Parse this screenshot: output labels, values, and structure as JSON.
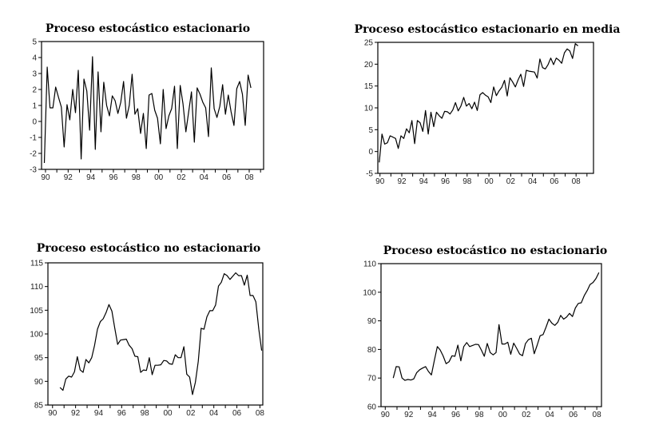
{
  "chart_data": [
    {
      "type": "line",
      "title": "Proceso estocástico estacionario",
      "xlim": [
        1989.65,
        2009.27
      ],
      "ylim": [
        -3,
        5
      ],
      "yticks": [
        5,
        4,
        3,
        2,
        1,
        0,
        -1,
        -2,
        -3
      ],
      "ytick_labels": [
        "5",
        "4",
        "3",
        "2",
        "1",
        "0",
        "-1",
        "-2",
        "-3"
      ],
      "xticks": [
        1990,
        1992,
        1994,
        1996,
        1998,
        2000,
        2002,
        2004,
        2006,
        2008
      ],
      "xtick_labels": [
        "90",
        "92",
        "94",
        "96",
        "98",
        "00",
        "02",
        "04",
        "06",
        "08"
      ],
      "grid": false,
      "frequency": "quarterly",
      "x_start": 1989.9,
      "values": [
        -2.6,
        3.4,
        0.85,
        0.85,
        2.15,
        1.5,
        0.9,
        -1.6,
        1.05,
        0.1,
        2.0,
        0.55,
        3.2,
        -2.35,
        2.65,
        1.9,
        -0.55,
        4.05,
        -1.75,
        3.1,
        -0.65,
        2.45,
        1.0,
        0.35,
        1.6,
        1.3,
        0.5,
        1.2,
        2.5,
        0.2,
        1.0,
        2.95,
        0.45,
        0.8,
        -0.75,
        0.5,
        -1.7,
        1.65,
        1.75,
        0.7,
        0.2,
        -1.4,
        2.0,
        -0.45,
        0.35,
        0.8,
        2.2,
        -1.7,
        2.25,
        1.1,
        -0.65,
        0.6,
        1.85,
        -1.3,
        2.1,
        1.7,
        1.2,
        0.85,
        -0.95,
        3.35,
        0.8,
        0.25,
        0.95,
        2.3,
        0.45,
        1.65,
        0.6,
        -0.25,
        2.05,
        2.5,
        1.7,
        -0.25,
        2.9,
        2.1
      ]
    },
    {
      "type": "line",
      "title": "Proceso estocástico estacionario en media",
      "xlim": [
        1989.8,
        2009.6
      ],
      "ylim": [
        -5,
        25
      ],
      "yticks": [
        25,
        20,
        15,
        10,
        5,
        0,
        -5
      ],
      "ytick_labels": [
        "25",
        "20",
        "15",
        "10",
        "5",
        "0",
        "-5"
      ],
      "xticks": [
        1990,
        1992,
        1994,
        1996,
        1998,
        2000,
        2002,
        2004,
        2006,
        2008
      ],
      "xtick_labels": [
        "90",
        "92",
        "94",
        "96",
        "98",
        "00",
        "02",
        "04",
        "06",
        "08"
      ],
      "grid": false,
      "frequency": "quarterly",
      "x_start": 1989.93,
      "values": [
        -2.5,
        4.0,
        1.7,
        2.0,
        3.6,
        3.3,
        3.0,
        0.7,
        3.6,
        3.0,
        5.2,
        4.3,
        7.1,
        1.8,
        7.1,
        6.6,
        4.6,
        9.4,
        4.0,
        9.0,
        5.7,
        9.0,
        8.2,
        7.6,
        9.2,
        9.1,
        8.6,
        9.5,
        11.2,
        9.3,
        10.4,
        12.4,
        10.4,
        11.0,
        9.8,
        11.3,
        9.4,
        13.0,
        13.5,
        12.9,
        12.5,
        11.2,
        14.8,
        12.8,
        13.9,
        14.7,
        16.3,
        12.7,
        16.9,
        15.9,
        14.8,
        16.4,
        17.7,
        14.9,
        18.6,
        18.4,
        18.3,
        18.2,
        16.8,
        21.2,
        19.2,
        18.9,
        19.9,
        21.4,
        19.9,
        21.4,
        20.9,
        20.2,
        22.6,
        23.5,
        23.0,
        21.3,
        24.7,
        24.2
      ]
    },
    {
      "type": "line",
      "title": "Proceso estocástico no estacionario",
      "xlim": [
        1989.6,
        2008.25
      ],
      "ylim": [
        85,
        115
      ],
      "yticks": [
        115,
        110,
        105,
        100,
        95,
        90,
        85
      ],
      "ytick_labels": [
        "115",
        "110",
        "105",
        "100",
        "95",
        "90",
        "85"
      ],
      "xticks": [
        1990,
        1992,
        1994,
        1996,
        1998,
        2000,
        2002,
        2004,
        2006,
        2008
      ],
      "xtick_labels": [
        "90",
        "92",
        "94",
        "96",
        "98",
        "00",
        "02",
        "04",
        "06",
        "08"
      ],
      "grid": false,
      "frequency": "quarterly",
      "x_start": 1990.65,
      "values": [
        88.7,
        88.1,
        90.5,
        91.1,
        90.9,
        92.0,
        95.2,
        92.4,
        91.9,
        94.6,
        93.9,
        95.0,
        97.6,
        101.0,
        102.6,
        103.2,
        104.5,
        106.2,
        104.8,
        101.2,
        97.8,
        98.7,
        98.8,
        98.9,
        97.6,
        96.9,
        95.3,
        95.2,
        91.9,
        92.4,
        92.3,
        95.0,
        91.4,
        93.4,
        93.4,
        93.5,
        94.4,
        94.3,
        93.7,
        93.6,
        95.6,
        95.0,
        95.0,
        97.3,
        91.5,
        90.9,
        87.2,
        89.8,
        94.2,
        101.2,
        101.0,
        103.6,
        104.9,
        104.9,
        106.1,
        110.1,
        110.9,
        112.7,
        112.3,
        111.5,
        112.2,
        112.9,
        112.3,
        112.3,
        110.3,
        112.4,
        108.1,
        108.1,
        106.8,
        101.0,
        96.5
      ]
    },
    {
      "type": "line",
      "title": "Proceso estocástico no estacionario",
      "xlim": [
        1989.64,
        2008.4
      ],
      "ylim": [
        60,
        110
      ],
      "yticks": [
        110,
        100,
        90,
        80,
        70,
        60
      ],
      "ytick_labels": [
        "110",
        "100",
        "90",
        "80",
        "70",
        "60"
      ],
      "xticks": [
        1990,
        1992,
        1994,
        1996,
        1998,
        2000,
        2002,
        2004,
        2006,
        2008
      ],
      "xtick_labels": [
        "90",
        "92",
        "94",
        "96",
        "98",
        "00",
        "02",
        "04",
        "06",
        "08"
      ],
      "grid": false,
      "frequency": "quarterly",
      "x_start": 1990.68,
      "values": [
        70.0,
        74.0,
        73.9,
        70.0,
        69.2,
        69.5,
        69.3,
        69.7,
        71.9,
        72.9,
        73.5,
        74.0,
        72.3,
        71.1,
        76.2,
        81.0,
        79.8,
        77.7,
        75.0,
        75.7,
        77.8,
        77.6,
        81.5,
        76.0,
        81.0,
        82.4,
        81.0,
        81.4,
        81.8,
        81.7,
        79.8,
        77.6,
        82.1,
        78.9,
        78.1,
        78.9,
        88.7,
        81.9,
        81.9,
        82.5,
        78.3,
        82.2,
        80.4,
        78.4,
        77.8,
        82.0,
        83.4,
        83.9,
        78.5,
        81.5,
        84.8,
        85.2,
        87.8,
        90.6,
        89.2,
        88.4,
        89.5,
        91.9,
        90.6,
        91.3,
        92.6,
        91.5,
        94.5,
        96.1,
        96.3,
        98.8,
        100.6,
        102.7,
        103.4,
        104.8,
        106.9
      ]
    }
  ]
}
